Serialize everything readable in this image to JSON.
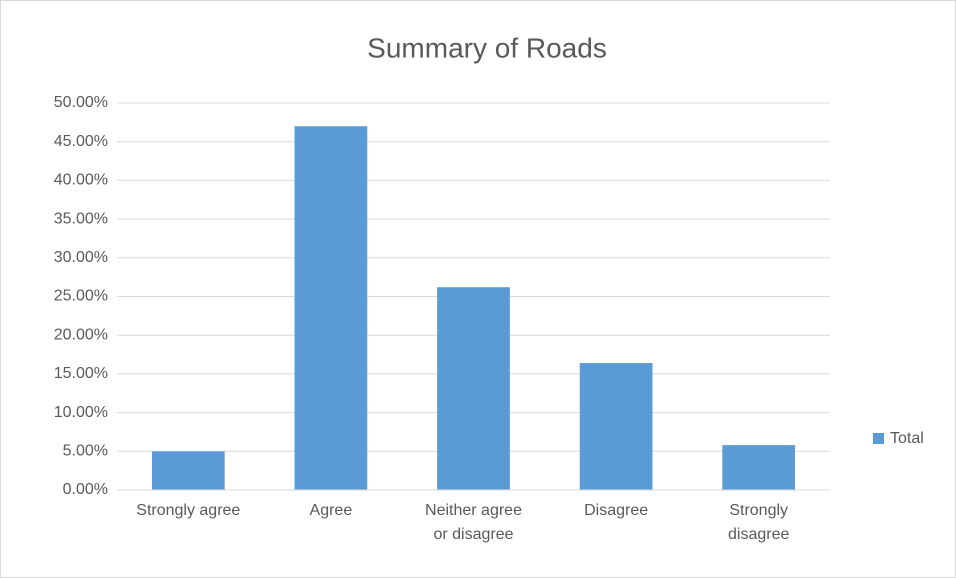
{
  "chart_data": {
    "type": "bar",
    "title": "Summary of Roads",
    "categories": [
      "Strongly agree",
      "Agree",
      "Neither agree or disagree",
      "Disagree",
      "Strongly disagree"
    ],
    "series": [
      {
        "name": "Total",
        "color": "#5b9bd5",
        "values": [
          5.0,
          47.0,
          26.2,
          16.4,
          5.8
        ]
      }
    ],
    "ylim": [
      0,
      50
    ],
    "yticks": [
      {
        "value": 0,
        "label": "0.00%"
      },
      {
        "value": 5,
        "label": "5.00%"
      },
      {
        "value": 10,
        "label": "10.00%"
      },
      {
        "value": 15,
        "label": "15.00%"
      },
      {
        "value": 20,
        "label": "20.00%"
      },
      {
        "value": 25,
        "label": "25.00%"
      },
      {
        "value": 30,
        "label": "30.00%"
      },
      {
        "value": 35,
        "label": "35.00%"
      },
      {
        "value": 40,
        "label": "40.00%"
      },
      {
        "value": 45,
        "label": "45.00%"
      },
      {
        "value": 50,
        "label": "50.00%"
      }
    ],
    "grid": true,
    "legend": "right"
  }
}
